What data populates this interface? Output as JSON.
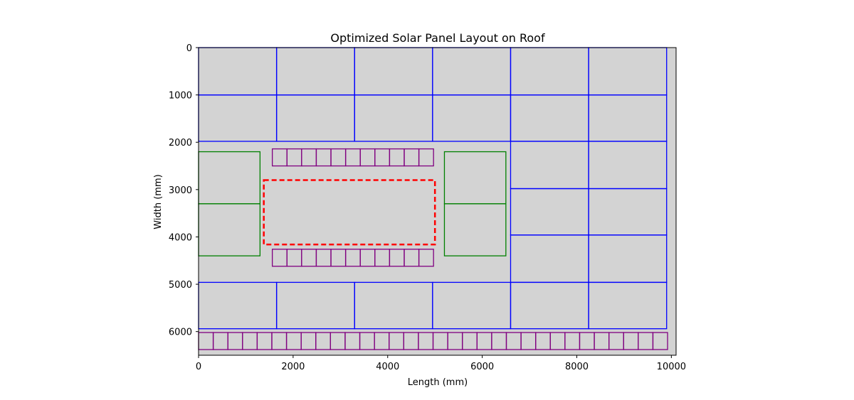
{
  "chart_data": {
    "type": "layout",
    "title": "Optimized Solar Panel Layout on Roof",
    "xlabel": "Length (mm)",
    "ylabel": "Width (mm)",
    "xlim": [
      0,
      10100
    ],
    "ylim": [
      6500,
      0
    ],
    "y_inverted": true,
    "xticks": [
      0,
      2000,
      4000,
      6000,
      8000,
      10000
    ],
    "yticks": [
      0,
      1000,
      2000,
      3000,
      4000,
      5000,
      6000
    ],
    "grid": false,
    "legend": "none",
    "roof": {
      "x": 0,
      "y": 0,
      "width": 10100,
      "height": 6500
    },
    "colors": {
      "roof_fill": "#d3d3d3",
      "large_panels": "#0000ff",
      "medium_panels": "#008000",
      "small_panels": "#800080",
      "obstacle": "#ff0000"
    },
    "obstacle": {
      "x": 1380,
      "y": 2800,
      "width": 3620,
      "height": 1360,
      "style": "dashed"
    },
    "large_panels": {
      "columns_left": [
        0,
        1650,
        3300,
        4950,
        6600,
        8250,
        9900
      ],
      "top_rows": [
        0,
        1000,
        1980
      ],
      "bottom_rows": [
        4960,
        5940
      ],
      "right_block_x": [
        6600,
        8250,
        9900
      ],
      "right_block_rows": [
        1980,
        2980,
        3960,
        4960
      ]
    },
    "medium_panels": {
      "columns": [
        [
          0,
          1300
        ],
        [
          5200,
          6500
        ]
      ],
      "rows": [
        2200,
        3300,
        4400
      ]
    },
    "small_panels": {
      "top_strip": {
        "x_start": 1560,
        "count": 11,
        "panel_width": 310,
        "y": 2140,
        "height": 360
      },
      "mid_strip": {
        "x_start": 1560,
        "count": 11,
        "panel_width": 310,
        "y": 4260,
        "height": 360
      },
      "bottom_strip": {
        "x_start": 0,
        "count": 32,
        "panel_width": 310,
        "y": 6020,
        "height": 360
      }
    }
  }
}
